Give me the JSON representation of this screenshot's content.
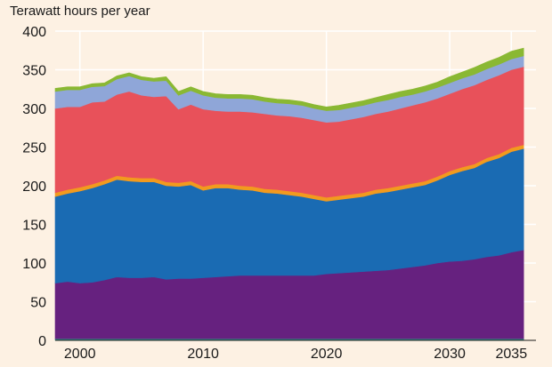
{
  "chart_data": {
    "type": "area",
    "stacked": true,
    "ylabel": "Terawatt hours per year",
    "xlabel": "",
    "title": "",
    "ylim": [
      0,
      400
    ],
    "xlim": [
      1998,
      2037
    ],
    "grid": true,
    "legend": "none",
    "x_ticks": [
      2000,
      2010,
      2020,
      2030,
      2035
    ],
    "x_tick_labels": [
      "2000",
      "2010",
      "2020",
      "2030",
      "2035"
    ],
    "y_ticks": [
      0,
      50,
      100,
      150,
      200,
      250,
      300,
      350,
      400
    ],
    "y_tick_labels": [
      "0",
      "50",
      "100",
      "150",
      "200",
      "250",
      "300",
      "350",
      "400"
    ],
    "x": [
      1998,
      1999,
      2000,
      2001,
      2002,
      2003,
      2004,
      2005,
      2006,
      2007,
      2008,
      2009,
      2010,
      2011,
      2012,
      2013,
      2014,
      2015,
      2016,
      2017,
      2018,
      2019,
      2020,
      2021,
      2022,
      2023,
      2024,
      2025,
      2026,
      2027,
      2028,
      2029,
      2030,
      2031,
      2032,
      2033,
      2034,
      2035,
      2036
    ],
    "series": [
      {
        "color": "#2e9a8a",
        "values": [
          2,
          2,
          2,
          2,
          2,
          2,
          2,
          2,
          2,
          2,
          2,
          2,
          2,
          2,
          2,
          2,
          2,
          2,
          2,
          2,
          2,
          2,
          2,
          2,
          2,
          2,
          2,
          2,
          2,
          2,
          2,
          2,
          2,
          2,
          2,
          2,
          2,
          2,
          2
        ]
      },
      {
        "color": "#66217f",
        "values": [
          72,
          74,
          72,
          73,
          76,
          80,
          79,
          79,
          80,
          77,
          78,
          78,
          79,
          80,
          81,
          82,
          82,
          82,
          82,
          82,
          82,
          82,
          84,
          85,
          86,
          87,
          88,
          89,
          91,
          93,
          95,
          98,
          100,
          101,
          103,
          106,
          108,
          112,
          115
        ]
      },
      {
        "color": "#1a6bb3",
        "values": [
          112,
          114,
          119,
          122,
          124,
          126,
          125,
          124,
          123,
          121,
          119,
          121,
          113,
          115,
          114,
          111,
          110,
          107,
          106,
          104,
          102,
          99,
          94,
          95,
          96,
          97,
          100,
          101,
          102,
          103,
          104,
          107,
          112,
          116,
          118,
          123,
          126,
          130,
          131
        ]
      },
      {
        "color": "#f29a1e",
        "values": [
          5,
          5,
          5,
          5,
          5,
          5,
          5,
          5,
          5,
          5,
          5,
          5,
          5,
          5,
          5,
          5,
          5,
          5,
          5,
          5,
          5,
          5,
          5,
          5,
          5,
          5,
          5,
          5,
          5,
          5,
          5,
          5,
          5,
          5,
          5,
          5,
          5,
          5,
          5
        ]
      },
      {
        "color": "#e8515a",
        "values": [
          109,
          107,
          104,
          106,
          102,
          105,
          111,
          107,
          105,
          111,
          95,
          99,
          100,
          95,
          94,
          96,
          96,
          97,
          96,
          97,
          97,
          97,
          97,
          96,
          97,
          98,
          98,
          99,
          100,
          101,
          102,
          101,
          100,
          101,
          102,
          101,
          102,
          101,
          101
        ]
      },
      {
        "color": "#8fa6d8",
        "values": [
          22,
          22,
          22,
          20,
          20,
          20,
          20,
          20,
          20,
          20,
          18,
          18,
          18,
          17,
          17,
          17,
          17,
          16,
          16,
          16,
          16,
          15,
          15,
          15,
          15,
          15,
          15,
          15,
          15,
          14,
          14,
          14,
          14,
          14,
          14,
          14,
          14,
          14,
          14
        ]
      },
      {
        "color": "#8ab833",
        "values": [
          4,
          4,
          4,
          4,
          4,
          4,
          4,
          4,
          4,
          5,
          5,
          5,
          5,
          5,
          5,
          5,
          5,
          5,
          5,
          5,
          5,
          5,
          5,
          6,
          6,
          6,
          6,
          7,
          7,
          7,
          7,
          7,
          8,
          8,
          9,
          9,
          9,
          10,
          10
        ]
      }
    ]
  }
}
